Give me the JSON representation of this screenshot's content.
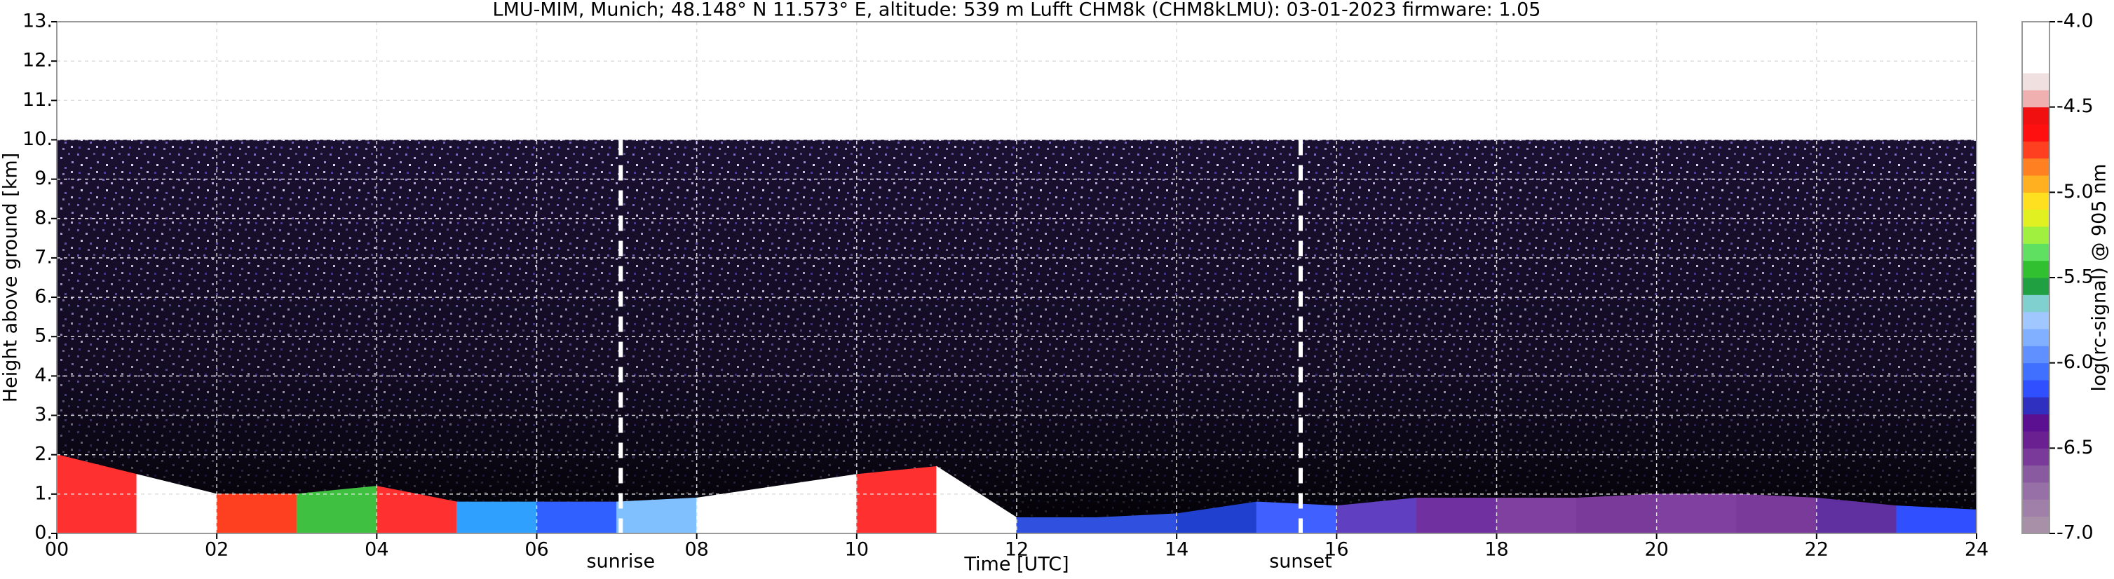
{
  "chart_data": {
    "type": "ceilometer",
    "title": "LMU-MIM, Munich; 48.148° N 11.573° E, altitude: 539 m    Lufft CHM8k (CHM8kLMU): 03-01-2023    firmware: 1.05",
    "xlabel": "Time [UTC]",
    "ylabel": "Height above ground [km]",
    "xlim": [
      0,
      24
    ],
    "xticks": [
      {
        "value": 0,
        "label": "00"
      },
      {
        "value": 2,
        "label": "02"
      },
      {
        "value": 4,
        "label": "04"
      },
      {
        "value": 6,
        "label": "06"
      },
      {
        "value": 8,
        "label": "08"
      },
      10,
      12,
      14,
      16,
      18,
      20,
      22,
      24
    ],
    "ylim": [
      0,
      13
    ],
    "yticks": [
      {
        "value": 0,
        "label": "0."
      },
      {
        "value": 1,
        "label": "1."
      },
      {
        "value": 2,
        "label": "2."
      },
      {
        "value": 3,
        "label": "3."
      },
      {
        "value": 4,
        "label": "4."
      },
      {
        "value": 5,
        "label": "5."
      },
      {
        "value": 6,
        "label": "6."
      },
      {
        "value": 7,
        "label": "7."
      },
      {
        "value": 8,
        "label": "8."
      },
      {
        "value": 9,
        "label": "9."
      },
      {
        "value": 10,
        "label": "10."
      },
      {
        "value": 11,
        "label": "11."
      },
      {
        "value": 12,
        "label": "12."
      },
      {
        "value": 13,
        "label": "13."
      }
    ],
    "grid": true,
    "signal_top": 10,
    "layer_x": [
      0,
      1,
      2,
      3,
      4,
      5,
      6,
      7,
      8,
      9,
      10,
      11,
      12,
      13,
      14,
      15,
      16,
      17,
      18,
      19,
      20,
      21,
      22,
      23,
      24
    ],
    "layer_top": [
      2.0,
      1.5,
      1.0,
      1.0,
      1.2,
      0.8,
      0.8,
      0.8,
      0.9,
      1.2,
      1.5,
      1.7,
      0.4,
      0.4,
      0.5,
      0.8,
      0.7,
      0.9,
      0.9,
      0.9,
      1.0,
      1.0,
      0.9,
      0.7,
      0.6
    ],
    "layer_colors": [
      "#ff3030",
      "#ffffff",
      "#ff4020",
      "#40c040",
      "#ff3030",
      "#30a0ff",
      "#3060ff",
      "#80c0ff",
      "#ffffff",
      "#ffffff",
      "#ff3030",
      "#ffffff",
      "#3050e0",
      "#3050e0",
      "#2040d0",
      "#4060ff",
      "#6040c0",
      "#7030a0",
      "#8040a0",
      "#7a3a9a",
      "#8040a0",
      "#7a3a9a",
      "#6030a0",
      "#3050ff"
    ],
    "events": [
      {
        "x": 7.05,
        "label": "sunrise"
      },
      {
        "x": 15.55,
        "label": "sunset"
      }
    ],
    "colorbar": {
      "label": "log(rc-signal) @ 905 nm",
      "lim": [
        -7,
        -4
      ],
      "ticks": [
        {
          "value": -7,
          "label": "-7.0"
        },
        {
          "value": -6.5,
          "label": "-6.5"
        },
        {
          "value": -6,
          "label": "-6.0"
        },
        {
          "value": -5.5,
          "label": "-5.5"
        },
        {
          "value": -5,
          "label": "-5.0"
        },
        {
          "value": -4.5,
          "label": "-4.5"
        },
        {
          "value": -4,
          "label": "-4.0"
        }
      ],
      "colors": [
        "#a890a8",
        "#a080a8",
        "#9870a8",
        "#8a5aa0",
        "#7a3a9a",
        "#6a2090",
        "#5a1090",
        "#3030c0",
        "#3050ff",
        "#4070ff",
        "#6090ff",
        "#80b0ff",
        "#a0c8ff",
        "#80d0d0",
        "#20a040",
        "#30c030",
        "#60e060",
        "#a0f040",
        "#e0f020",
        "#ffe020",
        "#ffb020",
        "#ff8020",
        "#ff4020",
        "#ff1010",
        "#f01010",
        "#f0b0b0",
        "#f0e0e0",
        "#ffffff",
        "#ffffff",
        "#ffffff"
      ]
    }
  }
}
